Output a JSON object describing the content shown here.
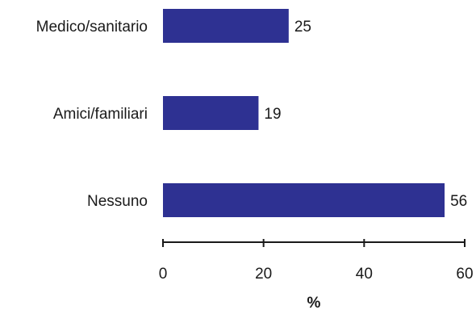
{
  "chart_data": {
    "type": "bar",
    "orientation": "horizontal",
    "categories": [
      "Medico/sanitario",
      "Amici/familiari",
      "Nessuno"
    ],
    "values": [
      25,
      19,
      56
    ],
    "value_labels": [
      "25",
      "19",
      "56"
    ],
    "xlabel": "%",
    "ylabel": "",
    "xlim": [
      0,
      60
    ],
    "xticks": [
      0,
      20,
      40,
      60
    ],
    "xtick_labels": [
      "0",
      "20",
      "40",
      "60"
    ],
    "grid": false,
    "bar_color": "#2e3192"
  }
}
